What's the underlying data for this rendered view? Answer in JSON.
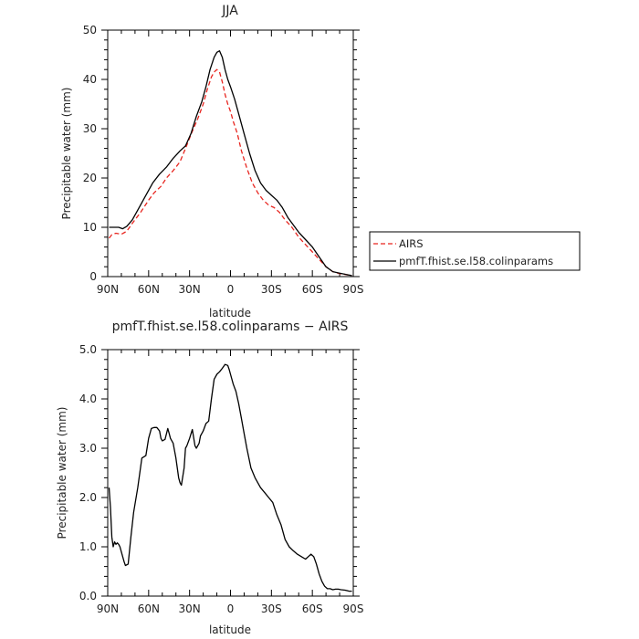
{
  "chart_data": [
    {
      "type": "line",
      "title": "JJA",
      "xlabel": "latitude",
      "ylabel": "Precipitable water (mm)",
      "xlim": [
        90,
        -90
      ],
      "ylim": [
        0,
        50
      ],
      "x_tick_labels": [
        "90N",
        "60N",
        "30N",
        "0",
        "30S",
        "60S",
        "90S"
      ],
      "x_tick_values": [
        90,
        60,
        30,
        0,
        -30,
        -60,
        -90
      ],
      "y_tick_labels": [
        "0",
        "10",
        "20",
        "30",
        "40",
        "50"
      ],
      "y_tick_values": [
        0,
        10,
        20,
        30,
        40,
        50
      ],
      "grid": false,
      "legend_position": "right",
      "series": [
        {
          "name": "AIRS",
          "color": "#e8251f",
          "dash": "dashed",
          "x": [
            89,
            87,
            84,
            80,
            76,
            72,
            66,
            60,
            56,
            51,
            47,
            42,
            37,
            33,
            28,
            24,
            20,
            17,
            14,
            12,
            10,
            8,
            6,
            4,
            2,
            0,
            -2,
            -5,
            -8,
            -12,
            -16,
            -20,
            -24,
            -28,
            -32,
            -36,
            -40,
            -45,
            -50,
            -55,
            -60,
            -65,
            -70,
            -75,
            -80,
            -85,
            -89
          ],
          "y": [
            7.8,
            8.5,
            8.8,
            8.6,
            9.2,
            10.8,
            13.0,
            15.5,
            17.0,
            18.3,
            20.0,
            21.5,
            23.3,
            26.0,
            29.5,
            32.0,
            35.0,
            38.0,
            40.5,
            41.5,
            42.0,
            41.5,
            39.5,
            37.0,
            35.0,
            33.5,
            31.5,
            29.0,
            25.5,
            22.0,
            19.0,
            17.0,
            15.5,
            14.5,
            14.0,
            13.0,
            11.5,
            10.0,
            8.0,
            6.5,
            5.0,
            3.5,
            2.0,
            1.0,
            0.6,
            0.4,
            0.2
          ]
        },
        {
          "name": "pmfT.fhist.se.l58.colinparams",
          "color": "#000000",
          "dash": "solid",
          "x": [
            89,
            86,
            82,
            79,
            76,
            72,
            67,
            62,
            57,
            52,
            47,
            42,
            37,
            33,
            29,
            25,
            21,
            18,
            15,
            12,
            10,
            8,
            6,
            4,
            2,
            0,
            -3,
            -6,
            -10,
            -14,
            -18,
            -22,
            -26,
            -30,
            -34,
            -38,
            -42,
            -46,
            -50,
            -55,
            -60,
            -65,
            -70,
            -75,
            -80,
            -85,
            -89
          ],
          "y": [
            10.0,
            10.0,
            10.0,
            9.7,
            10.2,
            11.5,
            14.0,
            16.5,
            19.0,
            20.8,
            22.2,
            24.0,
            25.5,
            26.5,
            29.0,
            32.5,
            35.5,
            38.5,
            42.0,
            44.5,
            45.5,
            45.8,
            44.5,
            42.0,
            40.0,
            38.5,
            36.0,
            33.0,
            29.0,
            25.0,
            21.5,
            19.0,
            17.5,
            16.5,
            15.5,
            14.0,
            12.0,
            10.5,
            9.0,
            7.5,
            6.0,
            4.0,
            2.0,
            1.0,
            0.7,
            0.4,
            0.2
          ]
        }
      ]
    },
    {
      "type": "line",
      "title": "pmfT.fhist.se.l58.colinparams − AIRS",
      "xlabel": "latitude",
      "ylabel": "Precipitable water (mm)",
      "xlim": [
        90,
        -90
      ],
      "ylim": [
        0,
        5
      ],
      "x_tick_labels": [
        "90N",
        "60N",
        "30N",
        "0",
        "30S",
        "60S",
        "90S"
      ],
      "x_tick_values": [
        90,
        60,
        30,
        0,
        -30,
        -60,
        -90
      ],
      "y_tick_labels": [
        "0.0",
        "1.0",
        "2.0",
        "3.0",
        "4.0",
        "5.0"
      ],
      "y_tick_values": [
        0,
        1,
        2,
        3,
        4,
        5
      ],
      "grid": false,
      "series": [
        {
          "color": "#000000",
          "dash": "solid",
          "x": [
            89,
            88,
            87,
            86,
            85,
            84,
            83,
            82,
            81,
            80,
            79,
            78,
            77,
            75,
            73,
            71,
            68,
            65,
            62,
            60,
            58,
            56,
            54,
            52,
            51,
            50,
            48,
            46,
            45,
            44,
            42,
            40,
            38,
            37,
            36,
            34,
            33,
            32,
            30,
            28,
            26,
            25,
            24,
            23,
            22,
            21,
            20,
            18,
            16,
            14,
            12,
            10,
            8,
            6,
            4,
            2,
            1,
            0,
            -2,
            -4,
            -6,
            -8,
            -10,
            -12,
            -15,
            -18,
            -20,
            -22,
            -25,
            -28,
            -31,
            -34,
            -37,
            -40,
            -43,
            -46,
            -49,
            -52,
            -55,
            -57,
            -59,
            -61,
            -63,
            -65,
            -67,
            -69,
            -71,
            -73,
            -75,
            -77,
            -79,
            -81,
            -84,
            -87,
            -89
          ],
          "y": [
            2.2,
            1.8,
            1.2,
            1.0,
            1.1,
            1.05,
            1.08,
            1.05,
            1.0,
            0.9,
            0.8,
            0.7,
            0.62,
            0.65,
            1.2,
            1.7,
            2.2,
            2.8,
            2.85,
            3.2,
            3.4,
            3.42,
            3.42,
            3.35,
            3.2,
            3.15,
            3.18,
            3.4,
            3.3,
            3.2,
            3.1,
            2.8,
            2.4,
            2.3,
            2.25,
            2.6,
            3.0,
            3.05,
            3.2,
            3.38,
            3.05,
            3.0,
            3.05,
            3.1,
            3.25,
            3.3,
            3.35,
            3.5,
            3.55,
            4.0,
            4.4,
            4.5,
            4.55,
            4.62,
            4.7,
            4.68,
            4.6,
            4.5,
            4.3,
            4.15,
            3.9,
            3.6,
            3.3,
            3.0,
            2.6,
            2.4,
            2.3,
            2.2,
            2.1,
            2.0,
            1.9,
            1.65,
            1.45,
            1.15,
            1.0,
            0.92,
            0.85,
            0.8,
            0.75,
            0.8,
            0.85,
            0.8,
            0.65,
            0.45,
            0.3,
            0.2,
            0.15,
            0.15,
            0.13,
            0.14,
            0.14,
            0.13,
            0.12,
            0.1,
            0.1
          ]
        }
      ]
    }
  ]
}
